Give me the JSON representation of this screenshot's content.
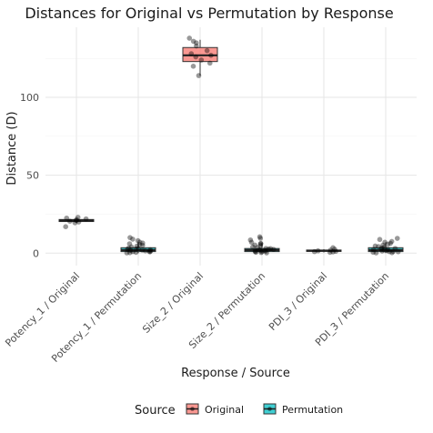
{
  "chart_data": {
    "type": "box",
    "title": "Distances for Original vs Permutation by Response",
    "xlabel": "Response / Source",
    "ylabel": "Distance (D)",
    "ylim": [
      -8,
      145
    ],
    "yticks": [
      0,
      50,
      100
    ],
    "grid": true,
    "legend": {
      "title": "Source",
      "position": "bottom",
      "entries": [
        {
          "name": "Original",
          "color": "#F8766D"
        },
        {
          "name": "Permutation",
          "color": "#00BFC4"
        }
      ]
    },
    "categories": [
      {
        "label": "Potency_1 / Original",
        "source": "Original",
        "box": {
          "min": 19.5,
          "q1": 20.3,
          "median": 21.0,
          "q3": 21.6,
          "max": 22.3
        },
        "points": [
          21,
          23,
          22.5,
          20.5,
          19.5,
          21.5,
          17,
          22,
          20
        ]
      },
      {
        "label": "Potency_1 / Permutation",
        "source": "Permutation",
        "box": {
          "min": 0,
          "q1": 1.0,
          "median": 2.0,
          "q3": 3.5,
          "max": 7.0
        },
        "points": [
          0.5,
          1,
          1.5,
          2,
          2.5,
          3,
          4,
          5,
          6,
          7,
          8,
          10,
          0.2,
          1.2,
          2.2,
          3.2,
          4.5,
          0.8,
          1.8,
          2.8,
          5.5,
          6.5,
          9,
          0.3,
          1.4
        ]
      },
      {
        "label": "Size_2 / Original",
        "source": "Original",
        "box": {
          "min": 114,
          "q1": 123,
          "median": 127,
          "q3": 132,
          "max": 137
        },
        "points": [
          114,
          120,
          124,
          126,
          128,
          130,
          133,
          135,
          138,
          127,
          136,
          122
        ]
      },
      {
        "label": "Size_2 / Permutation",
        "source": "Permutation",
        "box": {
          "min": 0,
          "q1": 1.0,
          "median": 2.0,
          "q3": 3.0,
          "max": 6.5
        },
        "points": [
          0.4,
          1,
          1.6,
          2.1,
          2.6,
          3,
          4,
          5.2,
          6,
          7,
          8.5,
          10.5,
          0.2,
          1.3,
          2.4,
          3.6,
          4.8,
          0.9,
          1.9,
          2.9,
          6.2,
          9.5,
          0.6,
          1.5
        ]
      },
      {
        "label": "PDI_3 / Original",
        "source": "Original",
        "box": {
          "min": 0.5,
          "q1": 1.2,
          "median": 1.6,
          "q3": 2.0,
          "max": 2.6
        },
        "points": [
          0.5,
          1.0,
          1.5,
          2.0,
          3.5,
          1.2,
          2.5,
          0.8
        ]
      },
      {
        "label": "PDI_3 / Permutation",
        "source": "Permutation",
        "box": {
          "min": 0,
          "q1": 1.0,
          "median": 2.0,
          "q3": 3.5,
          "max": 7.0
        },
        "points": [
          0.3,
          1,
          1.7,
          2.3,
          2.8,
          3.3,
          4.2,
          5.1,
          6.3,
          7.5,
          8.8,
          9.5,
          0.6,
          1.4,
          2.5,
          3.8,
          4.6,
          0.9,
          2,
          3,
          5.8,
          7,
          0.2,
          1.1
        ]
      }
    ]
  }
}
